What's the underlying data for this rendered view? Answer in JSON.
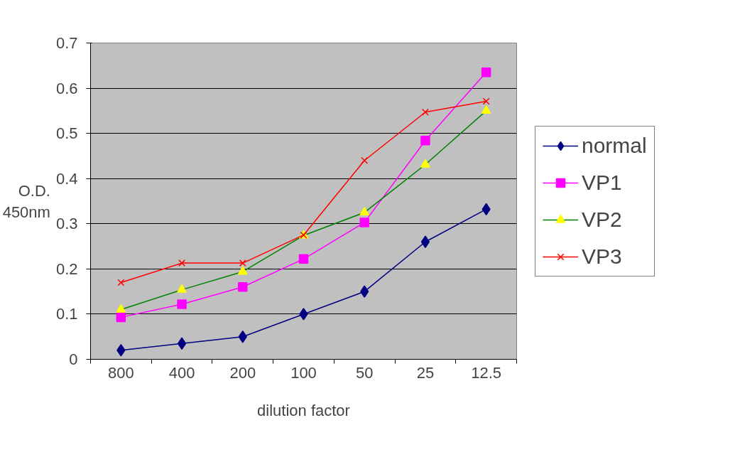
{
  "chart_data": {
    "type": "line",
    "xlabel": "dilution factor",
    "ylabel": "O.D.\n450nm",
    "categories": [
      "800",
      "400",
      "200",
      "100",
      "50",
      "25",
      "12.5"
    ],
    "ylim": [
      0,
      0.7
    ],
    "yticks": [
      0,
      0.1,
      0.2,
      0.3,
      0.4,
      0.5,
      0.6,
      0.7
    ],
    "grid": "y",
    "legend": "right",
    "series": [
      {
        "name": "normal",
        "color": "#000080",
        "marker": "diamond",
        "values": [
          0.02,
          0.035,
          0.05,
          0.1,
          0.15,
          0.26,
          0.332
        ]
      },
      {
        "name": "VP1",
        "color": "#ff00ff",
        "marker": "square",
        "values": [
          0.093,
          0.122,
          0.16,
          0.222,
          0.303,
          0.484,
          0.635
        ]
      },
      {
        "name": "VP2",
        "color": "#008000",
        "marker": "triangle",
        "colors": [
          "#ffff00",
          "#ffff00",
          "#ffff00",
          "#ffff00",
          "#ffff00",
          "#ffff00",
          "#ffff00"
        ],
        "values": [
          0.11,
          0.154,
          0.194,
          0.274,
          0.325,
          0.431,
          0.55
        ]
      },
      {
        "name": "VP3",
        "color": "#ff0000",
        "marker": "cross",
        "values": [
          0.17,
          0.213,
          0.213,
          0.275,
          0.44,
          0.547,
          0.571
        ]
      }
    ]
  }
}
